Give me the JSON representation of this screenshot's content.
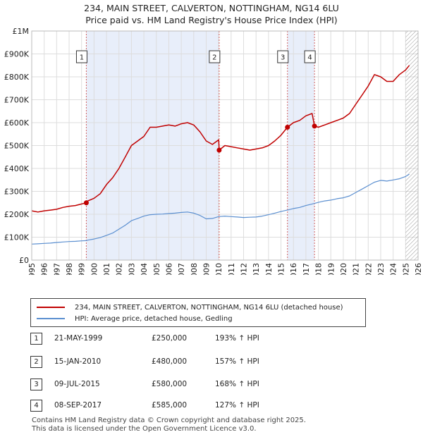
{
  "header": {
    "title": "234, MAIN STREET, CALVERTON, NOTTINGHAM, NG14 6LU",
    "subtitle": "Price paid vs. HM Land Registry's House Price Index (HPI)"
  },
  "legend": {
    "property_label": "234, MAIN STREET, CALVERTON, NOTTINGHAM, NG14 6LU (detached house)",
    "hpi_label": "HPI: Average price, detached house, Gedling"
  },
  "colors": {
    "property": "#c00000",
    "hpi": "#5b8fd0",
    "shade": "#e8eefa",
    "grid": "#dddddd",
    "marker_line": "#d06060"
  },
  "sales": [
    {
      "num": "1",
      "date": "21-MAY-1999",
      "price": "£250,000",
      "hpi": "193% ↑ HPI"
    },
    {
      "num": "2",
      "date": "15-JAN-2010",
      "price": "£480,000",
      "hpi": "157% ↑ HPI"
    },
    {
      "num": "3",
      "date": "09-JUL-2015",
      "price": "£580,000",
      "hpi": "168% ↑ HPI"
    },
    {
      "num": "4",
      "date": "08-SEP-2017",
      "price": "£585,000",
      "hpi": "127% ↑ HPI"
    }
  ],
  "footer": {
    "line1": "Contains HM Land Registry data © Crown copyright and database right 2025.",
    "line2": "This data is licensed under the Open Government Licence v3.0."
  },
  "chart_data": {
    "type": "line",
    "title": "234, MAIN STREET, CALVERTON, NOTTINGHAM, NG14 6LU",
    "subtitle": "Price paid vs. HM Land Registry's House Price Index (HPI)",
    "xlim": [
      1995,
      2026
    ],
    "ylim": [
      0,
      1000000
    ],
    "grid": true,
    "y_ticks": [
      {
        "value": 0,
        "label": "£0"
      },
      {
        "value": 100000,
        "label": "£100K"
      },
      {
        "value": 200000,
        "label": "£200K"
      },
      {
        "value": 300000,
        "label": "£300K"
      },
      {
        "value": 400000,
        "label": "£400K"
      },
      {
        "value": 500000,
        "label": "£500K"
      },
      {
        "value": 600000,
        "label": "£600K"
      },
      {
        "value": 700000,
        "label": "£700K"
      },
      {
        "value": 800000,
        "label": "£800K"
      },
      {
        "value": 900000,
        "label": "£900K"
      },
      {
        "value": 1000000,
        "label": "£1M"
      }
    ],
    "x_ticks": [
      "1995",
      "1996",
      "1997",
      "1998",
      "1999",
      "2000",
      "2001",
      "2002",
      "2003",
      "2004",
      "2005",
      "2006",
      "2007",
      "2008",
      "2009",
      "2010",
      "2011",
      "2012",
      "2013",
      "2014",
      "2015",
      "2016",
      "2017",
      "2018",
      "2019",
      "2020",
      "2021",
      "2022",
      "2023",
      "2024",
      "2025",
      "2026"
    ],
    "shaded_ranges": [
      [
        1999.38,
        2010.04
      ],
      [
        2015.52,
        2017.69
      ]
    ],
    "hatched_from": 2025.0,
    "sale_markers": [
      {
        "label": "1",
        "x": 1999.38,
        "y": 250000
      },
      {
        "label": "2",
        "x": 2010.04,
        "y": 480000
      },
      {
        "label": "3",
        "x": 2015.52,
        "y": 580000
      },
      {
        "label": "4",
        "x": 2017.69,
        "y": 585000
      }
    ],
    "series": [
      {
        "name": "234, MAIN STREET, CALVERTON, NOTTINGHAM, NG14 6LU (detached house)",
        "x": [
          1995.0,
          1995.5,
          1996.0,
          1996.5,
          1997.0,
          1997.5,
          1998.0,
          1998.5,
          1999.0,
          1999.38,
          1999.5,
          2000.0,
          2000.5,
          2001.0,
          2001.5,
          2002.0,
          2002.5,
          2003.0,
          2003.5,
          2004.0,
          2004.5,
          2005.0,
          2005.5,
          2006.0,
          2006.5,
          2007.0,
          2007.5,
          2008.0,
          2008.5,
          2009.0,
          2009.5,
          2010.0,
          2010.04,
          2010.5,
          2011.0,
          2011.5,
          2012.0,
          2012.5,
          2013.0,
          2013.5,
          2014.0,
          2014.5,
          2015.0,
          2015.52,
          2016.0,
          2016.5,
          2017.0,
          2017.5,
          2017.69,
          2018.0,
          2018.5,
          2019.0,
          2019.5,
          2020.0,
          2020.5,
          2021.0,
          2021.5,
          2022.0,
          2022.5,
          2023.0,
          2023.5,
          2024.0,
          2024.5,
          2025.0,
          2025.3
        ],
        "values": [
          215000,
          210000,
          215000,
          218000,
          222000,
          230000,
          235000,
          238000,
          245000,
          250000,
          258000,
          270000,
          290000,
          330000,
          360000,
          400000,
          450000,
          500000,
          520000,
          540000,
          580000,
          580000,
          585000,
          590000,
          585000,
          595000,
          600000,
          590000,
          560000,
          520000,
          505000,
          525000,
          480000,
          500000,
          495000,
          490000,
          485000,
          480000,
          485000,
          490000,
          500000,
          520000,
          545000,
          580000,
          600000,
          610000,
          630000,
          640000,
          585000,
          580000,
          590000,
          600000,
          610000,
          620000,
          640000,
          680000,
          720000,
          760000,
          810000,
          800000,
          780000,
          780000,
          810000,
          830000,
          850000
        ]
      },
      {
        "name": "HPI: Average price, detached house, Gedling",
        "x": [
          1995.0,
          1995.5,
          1996.0,
          1996.5,
          1997.0,
          1997.5,
          1998.0,
          1998.5,
          1999.0,
          1999.38,
          1999.5,
          2000.0,
          2000.5,
          2001.0,
          2001.5,
          2002.0,
          2002.5,
          2003.0,
          2003.5,
          2004.0,
          2004.5,
          2005.0,
          2005.5,
          2006.0,
          2006.5,
          2007.0,
          2007.5,
          2008.0,
          2008.5,
          2009.0,
          2009.5,
          2010.0,
          2010.5,
          2011.0,
          2011.5,
          2012.0,
          2012.5,
          2013.0,
          2013.5,
          2014.0,
          2014.5,
          2015.0,
          2015.5,
          2016.0,
          2016.5,
          2017.0,
          2017.5,
          2018.0,
          2018.5,
          2019.0,
          2019.5,
          2020.0,
          2020.5,
          2021.0,
          2021.5,
          2022.0,
          2022.5,
          2023.0,
          2023.5,
          2024.0,
          2024.5,
          2025.0,
          2025.3
        ],
        "values": [
          70000,
          71000,
          73000,
          74000,
          77000,
          79000,
          81000,
          82000,
          84000,
          85000,
          87000,
          92000,
          98000,
          108000,
          118000,
          135000,
          152000,
          172000,
          182000,
          192000,
          198000,
          200000,
          201000,
          203000,
          205000,
          208000,
          210000,
          205000,
          195000,
          180000,
          182000,
          190000,
          192000,
          190000,
          188000,
          186000,
          187000,
          188000,
          192000,
          198000,
          205000,
          212000,
          218000,
          225000,
          230000,
          238000,
          245000,
          252000,
          258000,
          262000,
          268000,
          272000,
          280000,
          295000,
          310000,
          325000,
          340000,
          348000,
          345000,
          350000,
          355000,
          365000,
          375000
        ]
      }
    ]
  }
}
